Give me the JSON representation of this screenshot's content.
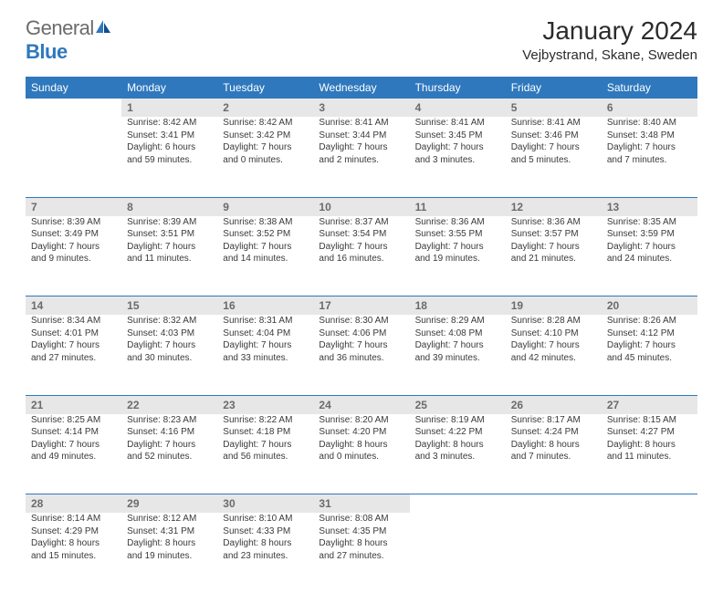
{
  "logo": {
    "text_gray": "General",
    "text_blue": "Blue"
  },
  "title": "January 2024",
  "location": "Vejbystrand, Skane, Sweden",
  "colors": {
    "header_bg": "#2f78bd",
    "header_fg": "#ffffff",
    "daynum_bg": "#e7e7e7",
    "daynum_fg": "#6b6b6b",
    "text": "#3a3a3a",
    "rule": "#2f78bd",
    "page_bg": "#ffffff"
  },
  "fonts": {
    "base_family": "Arial",
    "title_size_pt": 21,
    "location_size_pt": 11,
    "dayhead_size_pt": 9,
    "body_size_pt": 7.5
  },
  "days_of_week": [
    "Sunday",
    "Monday",
    "Tuesday",
    "Wednesday",
    "Thursday",
    "Friday",
    "Saturday"
  ],
  "weeks": [
    [
      {
        "num": "",
        "sunrise": "",
        "sunset": "",
        "daylight1": "",
        "daylight2": ""
      },
      {
        "num": "1",
        "sunrise": "Sunrise: 8:42 AM",
        "sunset": "Sunset: 3:41 PM",
        "daylight1": "Daylight: 6 hours",
        "daylight2": "and 59 minutes."
      },
      {
        "num": "2",
        "sunrise": "Sunrise: 8:42 AM",
        "sunset": "Sunset: 3:42 PM",
        "daylight1": "Daylight: 7 hours",
        "daylight2": "and 0 minutes."
      },
      {
        "num": "3",
        "sunrise": "Sunrise: 8:41 AM",
        "sunset": "Sunset: 3:44 PM",
        "daylight1": "Daylight: 7 hours",
        "daylight2": "and 2 minutes."
      },
      {
        "num": "4",
        "sunrise": "Sunrise: 8:41 AM",
        "sunset": "Sunset: 3:45 PM",
        "daylight1": "Daylight: 7 hours",
        "daylight2": "and 3 minutes."
      },
      {
        "num": "5",
        "sunrise": "Sunrise: 8:41 AM",
        "sunset": "Sunset: 3:46 PM",
        "daylight1": "Daylight: 7 hours",
        "daylight2": "and 5 minutes."
      },
      {
        "num": "6",
        "sunrise": "Sunrise: 8:40 AM",
        "sunset": "Sunset: 3:48 PM",
        "daylight1": "Daylight: 7 hours",
        "daylight2": "and 7 minutes."
      }
    ],
    [
      {
        "num": "7",
        "sunrise": "Sunrise: 8:39 AM",
        "sunset": "Sunset: 3:49 PM",
        "daylight1": "Daylight: 7 hours",
        "daylight2": "and 9 minutes."
      },
      {
        "num": "8",
        "sunrise": "Sunrise: 8:39 AM",
        "sunset": "Sunset: 3:51 PM",
        "daylight1": "Daylight: 7 hours",
        "daylight2": "and 11 minutes."
      },
      {
        "num": "9",
        "sunrise": "Sunrise: 8:38 AM",
        "sunset": "Sunset: 3:52 PM",
        "daylight1": "Daylight: 7 hours",
        "daylight2": "and 14 minutes."
      },
      {
        "num": "10",
        "sunrise": "Sunrise: 8:37 AM",
        "sunset": "Sunset: 3:54 PM",
        "daylight1": "Daylight: 7 hours",
        "daylight2": "and 16 minutes."
      },
      {
        "num": "11",
        "sunrise": "Sunrise: 8:36 AM",
        "sunset": "Sunset: 3:55 PM",
        "daylight1": "Daylight: 7 hours",
        "daylight2": "and 19 minutes."
      },
      {
        "num": "12",
        "sunrise": "Sunrise: 8:36 AM",
        "sunset": "Sunset: 3:57 PM",
        "daylight1": "Daylight: 7 hours",
        "daylight2": "and 21 minutes."
      },
      {
        "num": "13",
        "sunrise": "Sunrise: 8:35 AM",
        "sunset": "Sunset: 3:59 PM",
        "daylight1": "Daylight: 7 hours",
        "daylight2": "and 24 minutes."
      }
    ],
    [
      {
        "num": "14",
        "sunrise": "Sunrise: 8:34 AM",
        "sunset": "Sunset: 4:01 PM",
        "daylight1": "Daylight: 7 hours",
        "daylight2": "and 27 minutes."
      },
      {
        "num": "15",
        "sunrise": "Sunrise: 8:32 AM",
        "sunset": "Sunset: 4:03 PM",
        "daylight1": "Daylight: 7 hours",
        "daylight2": "and 30 minutes."
      },
      {
        "num": "16",
        "sunrise": "Sunrise: 8:31 AM",
        "sunset": "Sunset: 4:04 PM",
        "daylight1": "Daylight: 7 hours",
        "daylight2": "and 33 minutes."
      },
      {
        "num": "17",
        "sunrise": "Sunrise: 8:30 AM",
        "sunset": "Sunset: 4:06 PM",
        "daylight1": "Daylight: 7 hours",
        "daylight2": "and 36 minutes."
      },
      {
        "num": "18",
        "sunrise": "Sunrise: 8:29 AM",
        "sunset": "Sunset: 4:08 PM",
        "daylight1": "Daylight: 7 hours",
        "daylight2": "and 39 minutes."
      },
      {
        "num": "19",
        "sunrise": "Sunrise: 8:28 AM",
        "sunset": "Sunset: 4:10 PM",
        "daylight1": "Daylight: 7 hours",
        "daylight2": "and 42 minutes."
      },
      {
        "num": "20",
        "sunrise": "Sunrise: 8:26 AM",
        "sunset": "Sunset: 4:12 PM",
        "daylight1": "Daylight: 7 hours",
        "daylight2": "and 45 minutes."
      }
    ],
    [
      {
        "num": "21",
        "sunrise": "Sunrise: 8:25 AM",
        "sunset": "Sunset: 4:14 PM",
        "daylight1": "Daylight: 7 hours",
        "daylight2": "and 49 minutes."
      },
      {
        "num": "22",
        "sunrise": "Sunrise: 8:23 AM",
        "sunset": "Sunset: 4:16 PM",
        "daylight1": "Daylight: 7 hours",
        "daylight2": "and 52 minutes."
      },
      {
        "num": "23",
        "sunrise": "Sunrise: 8:22 AM",
        "sunset": "Sunset: 4:18 PM",
        "daylight1": "Daylight: 7 hours",
        "daylight2": "and 56 minutes."
      },
      {
        "num": "24",
        "sunrise": "Sunrise: 8:20 AM",
        "sunset": "Sunset: 4:20 PM",
        "daylight1": "Daylight: 8 hours",
        "daylight2": "and 0 minutes."
      },
      {
        "num": "25",
        "sunrise": "Sunrise: 8:19 AM",
        "sunset": "Sunset: 4:22 PM",
        "daylight1": "Daylight: 8 hours",
        "daylight2": "and 3 minutes."
      },
      {
        "num": "26",
        "sunrise": "Sunrise: 8:17 AM",
        "sunset": "Sunset: 4:24 PM",
        "daylight1": "Daylight: 8 hours",
        "daylight2": "and 7 minutes."
      },
      {
        "num": "27",
        "sunrise": "Sunrise: 8:15 AM",
        "sunset": "Sunset: 4:27 PM",
        "daylight1": "Daylight: 8 hours",
        "daylight2": "and 11 minutes."
      }
    ],
    [
      {
        "num": "28",
        "sunrise": "Sunrise: 8:14 AM",
        "sunset": "Sunset: 4:29 PM",
        "daylight1": "Daylight: 8 hours",
        "daylight2": "and 15 minutes."
      },
      {
        "num": "29",
        "sunrise": "Sunrise: 8:12 AM",
        "sunset": "Sunset: 4:31 PM",
        "daylight1": "Daylight: 8 hours",
        "daylight2": "and 19 minutes."
      },
      {
        "num": "30",
        "sunrise": "Sunrise: 8:10 AM",
        "sunset": "Sunset: 4:33 PM",
        "daylight1": "Daylight: 8 hours",
        "daylight2": "and 23 minutes."
      },
      {
        "num": "31",
        "sunrise": "Sunrise: 8:08 AM",
        "sunset": "Sunset: 4:35 PM",
        "daylight1": "Daylight: 8 hours",
        "daylight2": "and 27 minutes."
      },
      {
        "num": "",
        "sunrise": "",
        "sunset": "",
        "daylight1": "",
        "daylight2": ""
      },
      {
        "num": "",
        "sunrise": "",
        "sunset": "",
        "daylight1": "",
        "daylight2": ""
      },
      {
        "num": "",
        "sunrise": "",
        "sunset": "",
        "daylight1": "",
        "daylight2": ""
      }
    ]
  ]
}
